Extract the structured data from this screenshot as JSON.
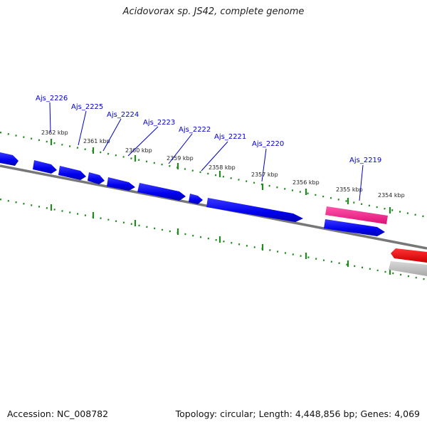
{
  "title": "Acidovorax sp. JS42, complete genome",
  "footer": {
    "accession": "Accession: NC_008782",
    "summary": "Topology: circular; Length: 4,448,856 bp; Genes: 4,069"
  },
  "colors": {
    "forward_cds": "#0000ee",
    "selected_gene": "#ee2288",
    "reverse_red": "#ee0000",
    "backbone": "#777777",
    "ticks": "#228822",
    "label": "#0000cc"
  },
  "ticks": [
    {
      "label": "2362 kbp"
    },
    {
      "label": "2361 kbp"
    },
    {
      "label": "2360 kbp"
    },
    {
      "label": "2359 kbp"
    },
    {
      "label": "2358 kbp"
    },
    {
      "label": "2357 kbp"
    },
    {
      "label": "2356 kbp"
    },
    {
      "label": "2355 kbp"
    },
    {
      "label": "2354 kbp"
    }
  ],
  "genes": [
    {
      "label": "Ajs_2226"
    },
    {
      "label": "Ajs_2225"
    },
    {
      "label": "Ajs_2224"
    },
    {
      "label": "Ajs_2223"
    },
    {
      "label": "Ajs_2222"
    },
    {
      "label": "Ajs_2221"
    },
    {
      "label": "Ajs_2220"
    },
    {
      "label": "Ajs_2219"
    }
  ]
}
